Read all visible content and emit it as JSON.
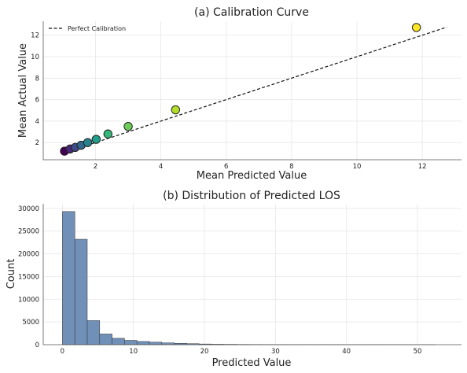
{
  "chart_data": [
    {
      "type": "scatter",
      "title": "(a) Calibration Curve",
      "xlabel": "Mean Predicted Value",
      "ylabel": "Mean Actual Value",
      "xlim": [
        0.4,
        13.2
      ],
      "ylim": [
        0.4,
        13.3
      ],
      "xticks": [
        2,
        4,
        6,
        8,
        10,
        12
      ],
      "yticks": [
        2,
        4,
        6,
        8,
        10,
        12
      ],
      "grid": true,
      "legend": {
        "placement": "top-left",
        "entries": [
          "Perfect Calibration"
        ]
      },
      "reference_line": {
        "name": "Perfect Calibration",
        "x": [
          1.0,
          12.75
        ],
        "y": [
          1.0,
          12.75
        ],
        "style": "dashed",
        "color": "#111111"
      },
      "colormap": "viridis",
      "points": [
        {
          "x": 1.05,
          "y": 1.2
        },
        {
          "x": 1.22,
          "y": 1.4
        },
        {
          "x": 1.38,
          "y": 1.55
        },
        {
          "x": 1.56,
          "y": 1.75
        },
        {
          "x": 1.76,
          "y": 2.0
        },
        {
          "x": 2.02,
          "y": 2.3
        },
        {
          "x": 2.38,
          "y": 2.8
        },
        {
          "x": 3.0,
          "y": 3.5
        },
        {
          "x": 4.45,
          "y": 5.05
        },
        {
          "x": 11.82,
          "y": 12.72
        }
      ]
    },
    {
      "type": "bar",
      "title": "(b) Distribution of Predicted LOS",
      "xlabel": "Predicted Value",
      "ylabel": "Count",
      "xlim": [
        -2.7,
        56.2
      ],
      "ylim": [
        0,
        31000
      ],
      "xticks": [
        0,
        10,
        20,
        30,
        40,
        50
      ],
      "yticks": [
        0,
        5000,
        10000,
        15000,
        20000,
        25000,
        30000
      ],
      "grid": true,
      "bin_edges": [
        0,
        1.75,
        3.5,
        5.25,
        7,
        8.75,
        10.5,
        12.25,
        14,
        15.75,
        17.5,
        19.25,
        21,
        22.75,
        24.5,
        26.25,
        28,
        29.75,
        31.5,
        33.25,
        35,
        36.75,
        38.5,
        40.25,
        42,
        43.75,
        45.5,
        47.25,
        49,
        50.75,
        52.5
      ],
      "values": [
        29300,
        23200,
        5300,
        2350,
        1400,
        950,
        700,
        550,
        400,
        300,
        220,
        150,
        100,
        80,
        60,
        50,
        40,
        30,
        25,
        20,
        20,
        15,
        15,
        10,
        10,
        8,
        6,
        5,
        4,
        3
      ],
      "color": "#7090b8"
    }
  ]
}
